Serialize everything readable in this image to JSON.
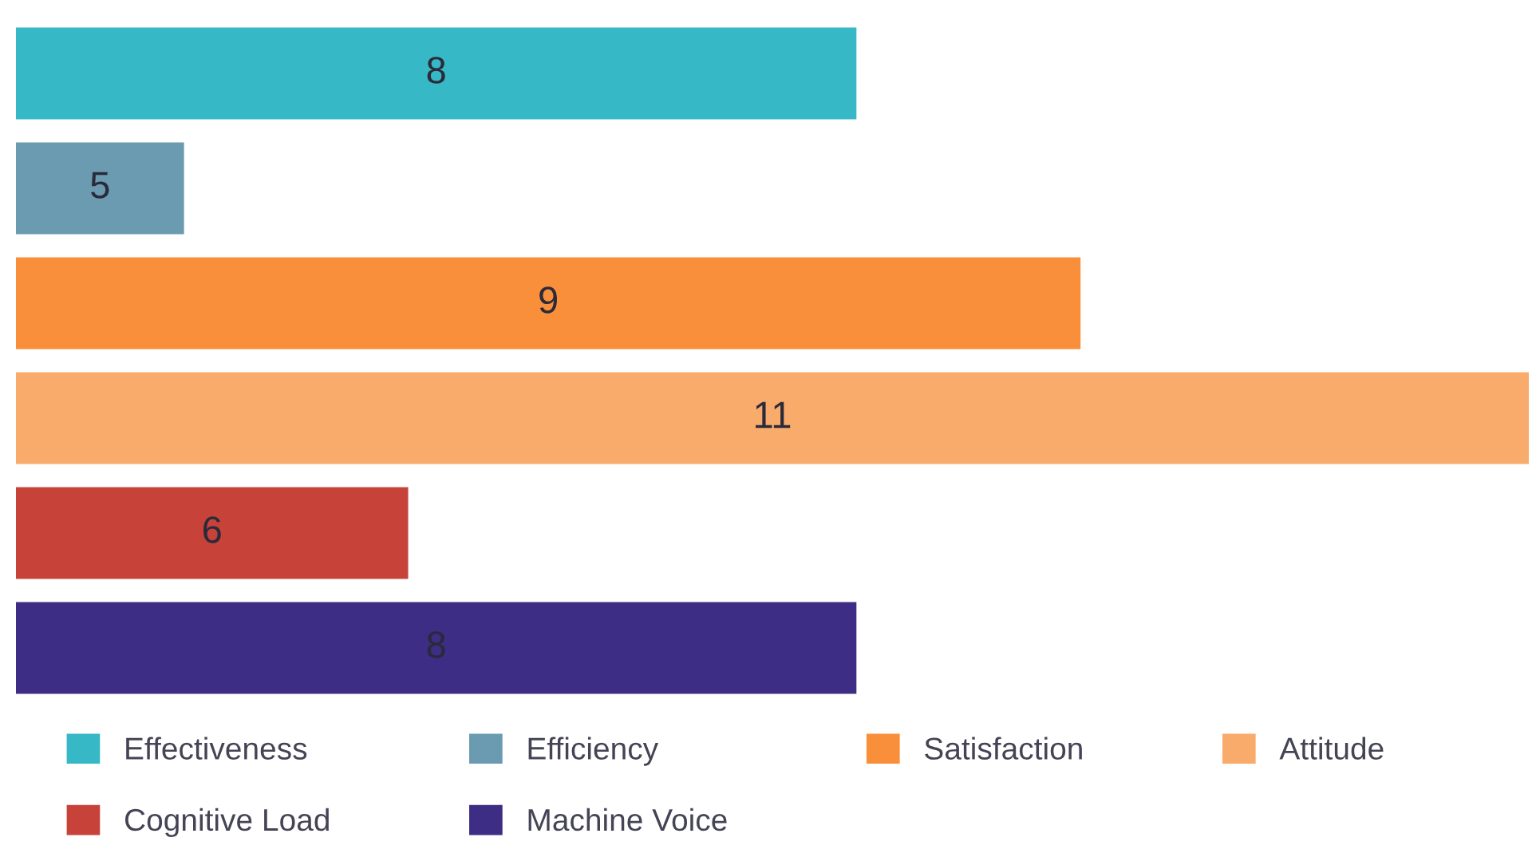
{
  "chart_data": {
    "type": "bar",
    "orientation": "horizontal",
    "stacked": true,
    "categories": [
      null,
      null,
      null,
      null,
      null,
      null
    ],
    "series": [
      {
        "name": "Effectiveness",
        "color": "#36b8c6",
        "values": [
          8,
          null,
          null,
          null,
          null,
          null
        ]
      },
      {
        "name": "Efficiency",
        "color": "#6a9bb0",
        "values": [
          null,
          5,
          null,
          null,
          null,
          null
        ]
      },
      {
        "name": "Satisfaction",
        "color": "#f98f3a",
        "values": [
          null,
          null,
          9,
          null,
          null,
          null
        ]
      },
      {
        "name": "Attitude",
        "color": "#f9ab6c",
        "values": [
          null,
          null,
          null,
          11,
          null,
          null
        ]
      },
      {
        "name": "Cognitive Load",
        "color": "#c7433a",
        "values": [
          null,
          null,
          null,
          null,
          6,
          null
        ]
      },
      {
        "name": "Machine Voice",
        "color": "#3e2d84",
        "values": [
          null,
          null,
          null,
          null,
          null,
          8
        ]
      }
    ],
    "xlim": [
      4.25,
      11
    ],
    "data_labels": true,
    "legend": "bottom"
  }
}
